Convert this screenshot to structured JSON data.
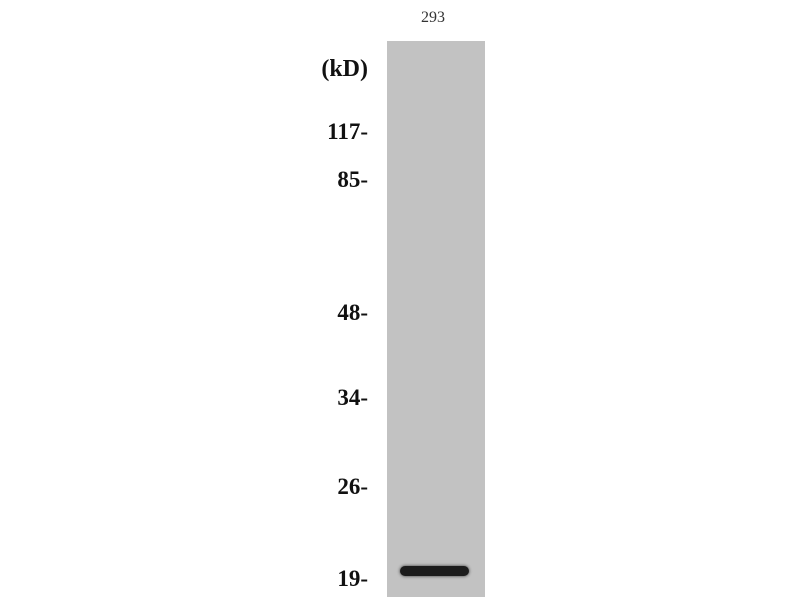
{
  "lanes": [
    {
      "label": "293"
    }
  ],
  "unit_label": "(kD)",
  "markers": [
    {
      "label": "117-",
      "kd": 117
    },
    {
      "label": "85-",
      "kd": 85
    },
    {
      "label": "48-",
      "kd": 48
    },
    {
      "label": "34-",
      "kd": 34
    },
    {
      "label": "26-",
      "kd": 26
    },
    {
      "label": "19-",
      "kd": 19
    }
  ],
  "bands": [
    {
      "lane": "293",
      "approx_kd": 19
    }
  ],
  "colors": {
    "membrane": "#c2c2c2",
    "band": "#1c1c1c"
  }
}
